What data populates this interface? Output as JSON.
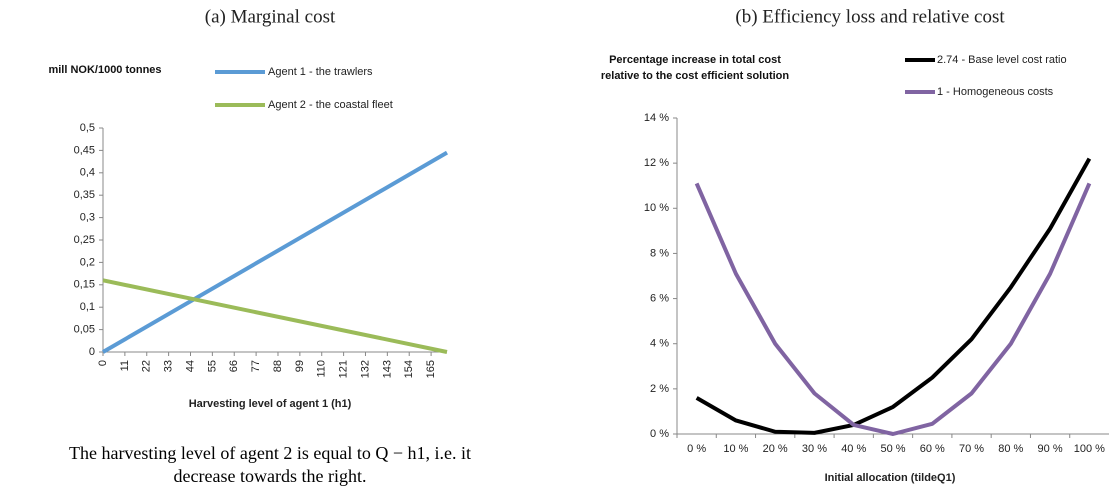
{
  "chart_data": [
    {
      "type": "line",
      "title": "(a) Marginal cost",
      "ylabel": "mill NOK/1000 tonnes",
      "xlabel": "Harvesting level of agent 1 (h1)",
      "note": "The harvesting level of agent 2 is equal to Q − h1, i.e. it decrease towards the right.",
      "x": [
        0,
        173
      ],
      "series": [
        {
          "name": "Agent 1 - the trawlers",
          "color": "#5b9bd5",
          "values": [
            0,
            0.445
          ]
        },
        {
          "name": "Agent 2 - the coastal fleet",
          "color": "#9bbb59",
          "values": [
            0.16,
            0
          ]
        }
      ],
      "xlim": [
        0,
        173
      ],
      "xticks": [
        0,
        11,
        22,
        33,
        44,
        55,
        66,
        77,
        88,
        99,
        110,
        121,
        132,
        143,
        154,
        165
      ],
      "ylim": [
        0,
        0.5
      ],
      "yticks": [
        0,
        {
          "value": 0.05,
          "label": "0,05"
        },
        {
          "value": 0.1,
          "label": "0,1"
        },
        {
          "value": 0.15,
          "label": "0,15"
        },
        {
          "value": 0.2,
          "label": "0,2"
        },
        {
          "value": 0.25,
          "label": "0,25"
        },
        {
          "value": 0.3,
          "label": "0,3"
        },
        {
          "value": 0.35,
          "label": "0,35"
        },
        {
          "value": 0.4,
          "label": "0,4"
        },
        {
          "value": 0.45,
          "label": "0,45"
        },
        {
          "value": 0.5,
          "label": "0,5"
        }
      ],
      "grid": false
    },
    {
      "type": "line",
      "title": "(b) Efficiency loss and relative cost",
      "ylabel": "Percentage increase in total cost relative to the cost efficient solution",
      "xlabel": "Initial allocation (tildeQ1)",
      "categories": [
        "0 %",
        "10 %",
        "20 %",
        "30 %",
        "40 %",
        "50 %",
        "60 %",
        "70 %",
        "80 %",
        "90 %",
        "100 %"
      ],
      "series": [
        {
          "name": "2.74 - Base level cost ratio",
          "color": "#000000",
          "values": [
            1.6,
            0.6,
            0.1,
            0.05,
            0.4,
            1.2,
            2.5,
            4.2,
            6.5,
            9.1,
            12.2
          ]
        },
        {
          "name": "1 - Homogeneous costs",
          "color": "#8064a2",
          "values": [
            11.1,
            7.1,
            4.0,
            1.8,
            0.4,
            0.0,
            0.45,
            1.8,
            4.0,
            7.1,
            11.1
          ]
        }
      ],
      "ylim": [
        0,
        14
      ],
      "yticks": [
        {
          "value": 0,
          "label": "0 %"
        },
        {
          "value": 2,
          "label": "2 %"
        },
        {
          "value": 4,
          "label": "4 %"
        },
        {
          "value": 6,
          "label": "6 %"
        },
        {
          "value": 8,
          "label": "8 %"
        },
        {
          "value": 10,
          "label": "10 %"
        },
        {
          "value": 12,
          "label": "12 %"
        },
        {
          "value": 14,
          "label": "14 %"
        }
      ],
      "grid": false
    }
  ]
}
